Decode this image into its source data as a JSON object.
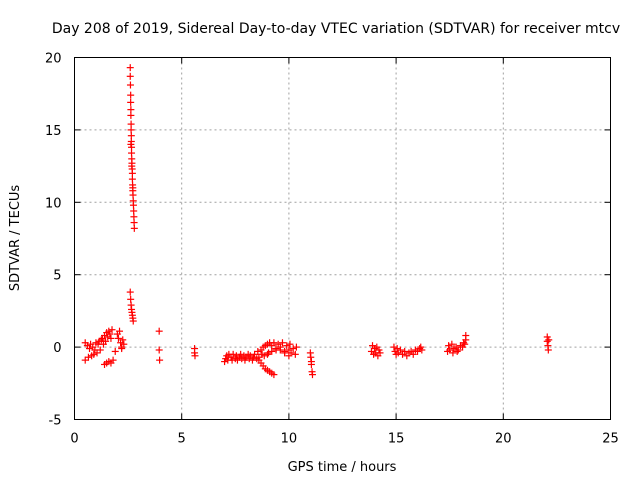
{
  "chart_data": {
    "type": "scatter",
    "title": "Day 208 of 2019, Sidereal Day-to-day VTEC variation (SDTVAR) for receiver mtcv",
    "xlabel": "GPS time / hours",
    "ylabel": "SDTVAR / TECUs",
    "xlim": [
      0,
      25
    ],
    "ylim": [
      -5,
      20
    ],
    "xticks": [
      "0",
      "5",
      "10",
      "15",
      "20",
      "25"
    ],
    "yticks": [
      "-5",
      "0",
      "5",
      "10",
      "15",
      "20"
    ],
    "grid": true,
    "marker": "plus",
    "color": "#ff0000",
    "series": [
      {
        "name": "SDTVAR",
        "points": [
          [
            0.5,
            -0.9
          ],
          [
            0.5,
            0.3
          ],
          [
            0.6,
            0.1
          ],
          [
            0.65,
            -0.7
          ],
          [
            0.7,
            -0.1
          ],
          [
            0.75,
            0.2
          ],
          [
            0.8,
            -0.6
          ],
          [
            0.85,
            0.0
          ],
          [
            0.9,
            -0.5
          ],
          [
            0.95,
            -0.2
          ],
          [
            1.0,
            0.3
          ],
          [
            1.05,
            -0.4
          ],
          [
            1.1,
            0.2
          ],
          [
            1.15,
            0.4
          ],
          [
            1.2,
            -0.2
          ],
          [
            1.25,
            0.5
          ],
          [
            1.3,
            0.6
          ],
          [
            1.35,
            0.2
          ],
          [
            1.4,
            0.8
          ],
          [
            1.45,
            0.4
          ],
          [
            1.5,
            1.0
          ],
          [
            1.55,
            0.7
          ],
          [
            1.6,
            1.1
          ],
          [
            1.65,
            0.9
          ],
          [
            1.7,
            0.6
          ],
          [
            1.75,
            1.2
          ],
          [
            1.4,
            -1.2
          ],
          [
            1.5,
            -1.1
          ],
          [
            1.6,
            -1.0
          ],
          [
            1.7,
            -1.1
          ],
          [
            1.8,
            -0.9
          ],
          [
            1.9,
            -0.3
          ],
          [
            2.0,
            0.9
          ],
          [
            2.05,
            0.6
          ],
          [
            2.1,
            1.1
          ],
          [
            2.15,
            0.3
          ],
          [
            2.2,
            0.0
          ],
          [
            2.2,
            -0.1
          ],
          [
            2.25,
            0.5
          ],
          [
            2.3,
            0.2
          ],
          [
            2.6,
            19.3
          ],
          [
            2.6,
            18.7
          ],
          [
            2.61,
            18.1
          ],
          [
            2.62,
            17.4
          ],
          [
            2.62,
            16.9
          ],
          [
            2.63,
            16.4
          ],
          [
            2.63,
            16.0
          ],
          [
            2.64,
            15.4
          ],
          [
            2.64,
            15.0
          ],
          [
            2.65,
            14.6
          ],
          [
            2.65,
            14.2
          ],
          [
            2.66,
            13.8
          ],
          [
            2.66,
            13.4
          ],
          [
            2.67,
            13.0
          ],
          [
            2.68,
            12.7
          ],
          [
            2.69,
            12.3
          ],
          [
            2.7,
            12.0
          ],
          [
            2.7,
            11.6
          ],
          [
            2.71,
            11.2
          ],
          [
            2.72,
            10.8
          ],
          [
            2.73,
            10.5
          ],
          [
            2.74,
            10.1
          ],
          [
            2.75,
            9.8
          ],
          [
            2.76,
            9.4
          ],
          [
            2.77,
            9.0
          ],
          [
            2.78,
            8.6
          ],
          [
            2.79,
            8.2
          ],
          [
            2.63,
            14.0
          ],
          [
            2.67,
            12.5
          ],
          [
            2.72,
            11.0
          ],
          [
            2.6,
            3.8
          ],
          [
            2.62,
            3.3
          ],
          [
            2.64,
            2.9
          ],
          [
            2.66,
            2.6
          ],
          [
            2.68,
            2.4
          ],
          [
            2.7,
            2.2
          ],
          [
            2.72,
            2.0
          ],
          [
            2.74,
            1.8
          ],
          [
            3.95,
            1.1
          ],
          [
            3.95,
            -0.2
          ],
          [
            3.97,
            -0.9
          ],
          [
            5.6,
            -0.1
          ],
          [
            5.6,
            -0.4
          ],
          [
            5.62,
            -0.6
          ],
          [
            7.0,
            -1.0
          ],
          [
            7.05,
            -0.8
          ],
          [
            7.1,
            -0.6
          ],
          [
            7.15,
            -0.9
          ],
          [
            7.2,
            -0.5
          ],
          [
            7.3,
            -0.7
          ],
          [
            7.35,
            -0.9
          ],
          [
            7.4,
            -0.5
          ],
          [
            7.5,
            -0.8
          ],
          [
            7.55,
            -0.6
          ],
          [
            7.6,
            -0.9
          ],
          [
            7.7,
            -0.7
          ],
          [
            7.75,
            -0.5
          ],
          [
            7.8,
            -0.8
          ],
          [
            7.9,
            -0.6
          ],
          [
            7.95,
            -0.9
          ],
          [
            8.0,
            -0.7
          ],
          [
            8.1,
            -0.5
          ],
          [
            8.15,
            -0.8
          ],
          [
            8.2,
            -0.6
          ],
          [
            8.3,
            -0.9
          ],
          [
            8.35,
            -0.7
          ],
          [
            8.4,
            -0.5
          ],
          [
            8.5,
            -0.8
          ],
          [
            8.55,
            -0.3
          ],
          [
            8.6,
            -0.7
          ],
          [
            8.7,
            -0.2
          ],
          [
            8.75,
            -0.5
          ],
          [
            8.8,
            0.0
          ],
          [
            8.85,
            -0.6
          ],
          [
            8.9,
            0.1
          ],
          [
            9.0,
            0.2
          ],
          [
            9.05,
            -0.4
          ],
          [
            9.1,
            0.3
          ],
          [
            9.2,
            0.1
          ],
          [
            9.3,
            0.3
          ],
          [
            9.4,
            -0.2
          ],
          [
            9.5,
            0.2
          ],
          [
            9.6,
            0.0
          ],
          [
            9.7,
            0.3
          ],
          [
            9.8,
            -0.3
          ],
          [
            9.9,
            0.1
          ],
          [
            10.0,
            -0.2
          ],
          [
            10.05,
            0.2
          ],
          [
            10.1,
            -0.4
          ],
          [
            10.2,
            -0.1
          ],
          [
            10.3,
            -0.5
          ],
          [
            10.35,
            0.0
          ],
          [
            8.6,
            -0.9
          ],
          [
            8.7,
            -1.1
          ],
          [
            8.8,
            -1.3
          ],
          [
            8.9,
            -1.5
          ],
          [
            9.0,
            -1.6
          ],
          [
            9.1,
            -1.7
          ],
          [
            9.2,
            -1.8
          ],
          [
            9.3,
            -1.9
          ],
          [
            9.0,
            -0.5
          ],
          [
            9.2,
            -0.3
          ],
          [
            9.4,
            -0.1
          ],
          [
            9.6,
            -0.2
          ],
          [
            9.8,
            -0.4
          ],
          [
            10.0,
            -0.6
          ],
          [
            11.0,
            -0.4
          ],
          [
            11.02,
            -0.7
          ],
          [
            11.05,
            -1.0
          ],
          [
            11.05,
            -1.2
          ],
          [
            11.08,
            -1.7
          ],
          [
            11.1,
            -1.9
          ],
          [
            13.85,
            -0.3
          ],
          [
            13.9,
            0.1
          ],
          [
            13.95,
            -0.5
          ],
          [
            14.0,
            -0.1
          ],
          [
            14.05,
            -0.4
          ],
          [
            14.1,
            0.0
          ],
          [
            14.15,
            -0.6
          ],
          [
            14.2,
            -0.2
          ],
          [
            14.25,
            -0.4
          ],
          [
            14.9,
            0.0
          ],
          [
            14.95,
            -0.3
          ],
          [
            15.0,
            -0.5
          ],
          [
            15.05,
            -0.1
          ],
          [
            15.1,
            -0.4
          ],
          [
            15.2,
            -0.2
          ],
          [
            15.3,
            -0.5
          ],
          [
            15.4,
            -0.3
          ],
          [
            15.5,
            -0.6
          ],
          [
            15.6,
            -0.4
          ],
          [
            15.7,
            -0.3
          ],
          [
            15.8,
            -0.5
          ],
          [
            15.9,
            -0.2
          ],
          [
            16.0,
            -0.3
          ],
          [
            16.1,
            -0.1
          ],
          [
            16.15,
            0.0
          ],
          [
            16.2,
            -0.2
          ],
          [
            17.4,
            -0.3
          ],
          [
            17.45,
            0.1
          ],
          [
            17.5,
            -0.2
          ],
          [
            17.6,
            0.2
          ],
          [
            17.65,
            -0.4
          ],
          [
            17.7,
            -0.1
          ],
          [
            17.8,
            0.0
          ],
          [
            17.85,
            -0.3
          ],
          [
            17.9,
            -0.2
          ],
          [
            18.0,
            0.1
          ],
          [
            18.1,
            0.0
          ],
          [
            18.15,
            0.3
          ],
          [
            18.2,
            0.2
          ],
          [
            18.25,
            0.8
          ],
          [
            18.25,
            0.5
          ],
          [
            22.05,
            0.7
          ],
          [
            22.05,
            0.4
          ],
          [
            22.08,
            0.1
          ],
          [
            22.1,
            -0.2
          ],
          [
            22.12,
            0.5
          ]
        ]
      }
    ]
  }
}
